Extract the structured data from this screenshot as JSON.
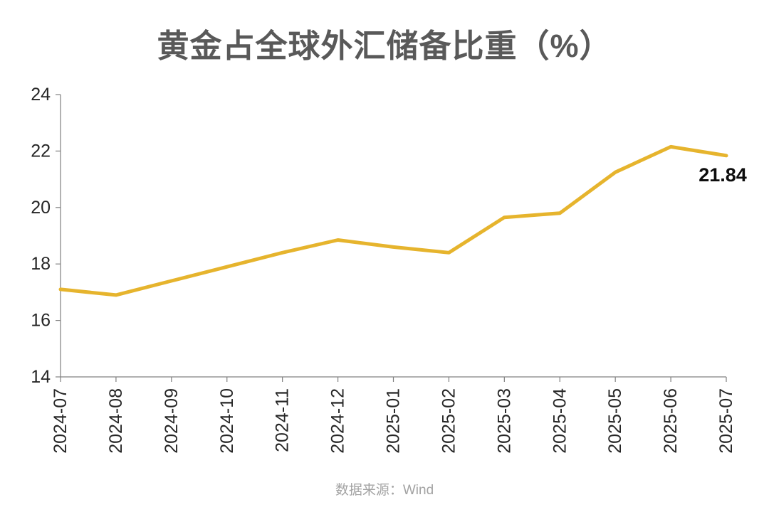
{
  "title": "黄金占全球外汇储备比重（%）",
  "footer": {
    "source": "数据来源：Wind"
  },
  "chart_data": {
    "type": "line",
    "title": "黄金占全球外汇储备比重（%）",
    "categories": [
      "2024-07",
      "2024-08",
      "2024-09",
      "2024-10",
      "2024-11",
      "2024-12",
      "2025-01",
      "2025-02",
      "2025-03",
      "2025-04",
      "2025-05",
      "2025-06",
      "2025-07"
    ],
    "values": [
      17.1,
      16.9,
      17.4,
      17.9,
      18.4,
      18.85,
      18.6,
      18.4,
      19.65,
      19.8,
      21.25,
      22.15,
      21.84
    ],
    "ylim": [
      14,
      24
    ],
    "y_ticks": [
      14,
      16,
      18,
      20,
      22,
      24
    ],
    "grid": false,
    "legend_position": "none",
    "xlabel": "",
    "ylabel": "",
    "line_color": "#e6b42d",
    "last_value_label": "21.84",
    "annotation_color": "#0d0d0d"
  }
}
